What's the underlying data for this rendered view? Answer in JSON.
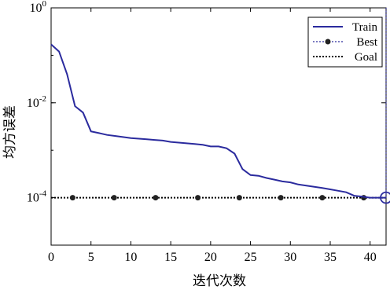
{
  "chart_data": {
    "type": "line",
    "title": "",
    "xlabel": "迭代次数",
    "ylabel": "均方误差",
    "x_scale": "linear",
    "y_scale": "log",
    "xlim": [
      0,
      42
    ],
    "ylim": [
      1e-05,
      1
    ],
    "x_ticks": [
      0,
      5,
      10,
      15,
      20,
      25,
      30,
      35,
      40
    ],
    "y_ticks": [
      {
        "value": 1,
        "base": "10",
        "exp": "0"
      },
      {
        "value": 0.01,
        "base": "10",
        "exp": "-2"
      },
      {
        "value": 0.0001,
        "base": "10",
        "exp": "-4"
      }
    ],
    "grid": false,
    "legend_position": "top-right",
    "legend": [
      "Train",
      "Best",
      "Goal"
    ],
    "colors": {
      "train": "#2b2b9e",
      "best": "#2b2b9e",
      "goal": "#000000"
    },
    "series": [
      {
        "name": "Train",
        "style": "solid",
        "x": [
          0,
          1,
          2,
          3,
          4,
          5,
          6,
          7,
          8,
          9,
          10,
          11,
          12,
          13,
          14,
          15,
          16,
          17,
          18,
          19,
          20,
          21,
          22,
          23,
          24,
          25,
          26,
          27,
          28,
          29,
          30,
          31,
          32,
          33,
          34,
          35,
          36,
          37,
          38,
          39,
          40,
          41,
          42
        ],
        "y": [
          0.17,
          0.12,
          0.04,
          0.0085,
          0.0062,
          0.0025,
          0.0023,
          0.0021,
          0.002,
          0.0019,
          0.0018,
          0.00175,
          0.0017,
          0.00165,
          0.0016,
          0.0015,
          0.00145,
          0.0014,
          0.00135,
          0.0013,
          0.0012,
          0.0012,
          0.0011,
          0.00085,
          0.0004,
          0.0003,
          0.00029,
          0.00026,
          0.00024,
          0.00022,
          0.00021,
          0.00019,
          0.00018,
          0.00017,
          0.00016,
          0.00015,
          0.00014,
          0.00013,
          0.00011,
          0.000105,
          0.0001,
          0.0001,
          0.0001
        ]
      },
      {
        "name": "Best",
        "style": "dotted",
        "x": [
          42,
          42
        ],
        "y": [
          0.0001,
          1
        ],
        "marker": "circle",
        "marker_at": [
          42,
          0.0001
        ]
      },
      {
        "name": "Goal",
        "style": "dotted",
        "x": [
          0,
          42
        ],
        "y": [
          0.0001,
          0.0001
        ],
        "markers_x": [
          2.7,
          7.9,
          13.1,
          18.4,
          23.6,
          28.8,
          34.0,
          39.2
        ]
      }
    ]
  }
}
